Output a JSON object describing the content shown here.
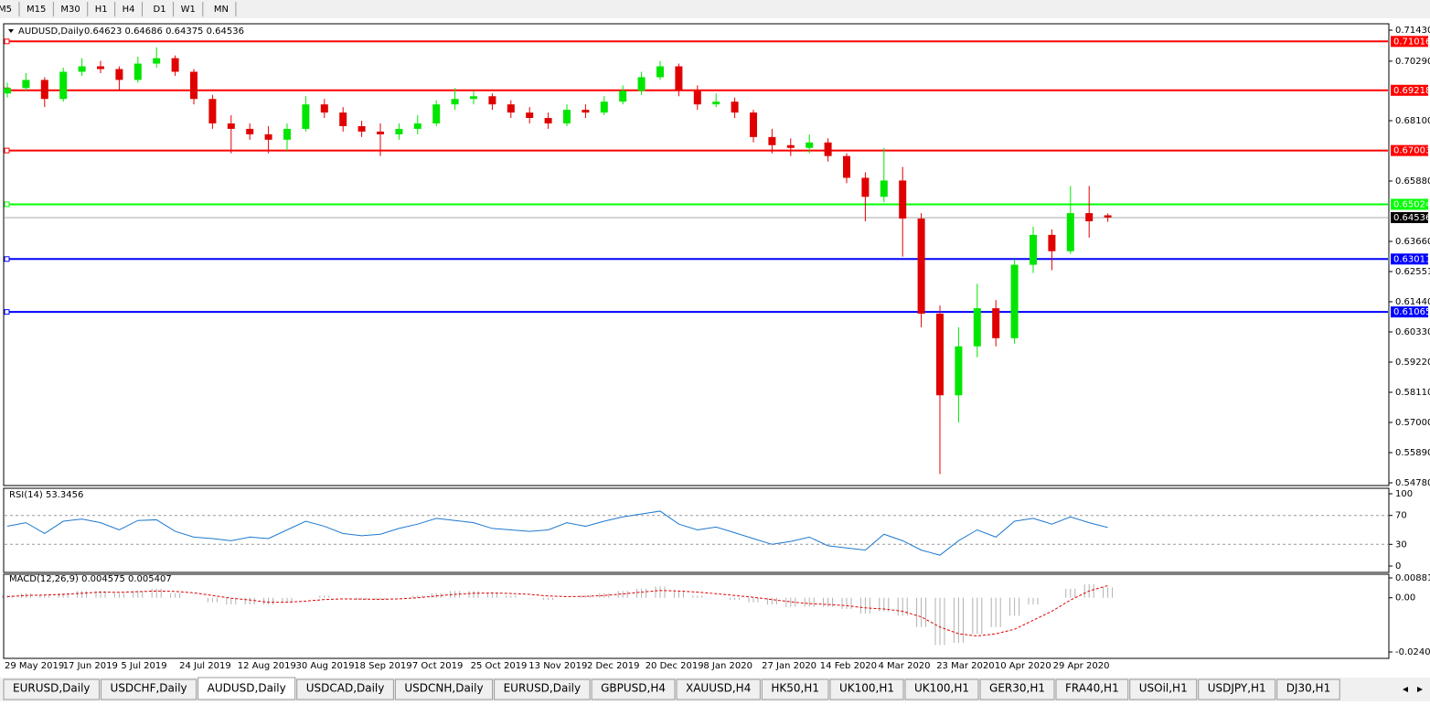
{
  "toolbar": {
    "timeframes": [
      "M5",
      "M15",
      "M30",
      "H1",
      "H4",
      "D1",
      "W1",
      "MN"
    ]
  },
  "chart_data": [
    {
      "type": "candlestick",
      "title": "AUDUSD,Daily",
      "ohlc_text": "0.64623 0.64686 0.64375 0.64536",
      "open": [
        0.691,
        0.693,
        0.696,
        0.689,
        0.699,
        0.701,
        0.7,
        0.696,
        0.702,
        0.704,
        0.699,
        0.689,
        0.68,
        0.678,
        0.676,
        0.674,
        0.678,
        0.687,
        0.684,
        0.679,
        0.677,
        0.676,
        0.678,
        0.68,
        0.687,
        0.689,
        0.69,
        0.687,
        0.684,
        0.682,
        0.68,
        0.685,
        0.684,
        0.688,
        0.692,
        0.697,
        0.701,
        0.692,
        0.687,
        0.688,
        0.684,
        0.675,
        0.672,
        0.671,
        0.673,
        0.668,
        0.66,
        0.653,
        0.659,
        0.645,
        0.61,
        0.58,
        0.598,
        0.612,
        0.601,
        0.628,
        0.639,
        0.633,
        0.647,
        0.6462
      ],
      "high": [
        0.695,
        0.6985,
        0.697,
        0.7005,
        0.704,
        0.703,
        0.701,
        0.7045,
        0.708,
        0.705,
        0.7,
        0.6905,
        0.683,
        0.68,
        0.679,
        0.68,
        0.69,
        0.689,
        0.686,
        0.681,
        0.68,
        0.68,
        0.683,
        0.6885,
        0.693,
        0.692,
        0.691,
        0.6885,
        0.686,
        0.684,
        0.687,
        0.687,
        0.69,
        0.694,
        0.699,
        0.703,
        0.702,
        0.694,
        0.691,
        0.6895,
        0.685,
        0.678,
        0.6745,
        0.676,
        0.6745,
        0.669,
        0.662,
        0.671,
        0.664,
        0.647,
        0.613,
        0.605,
        0.621,
        0.615,
        0.63,
        0.642,
        0.641,
        0.657,
        0.657,
        0.6469
      ],
      "low": [
        0.6895,
        0.692,
        0.686,
        0.688,
        0.6975,
        0.6985,
        0.692,
        0.695,
        0.7005,
        0.6975,
        0.687,
        0.678,
        0.669,
        0.674,
        0.669,
        0.67,
        0.677,
        0.682,
        0.677,
        0.675,
        0.668,
        0.674,
        0.676,
        0.679,
        0.685,
        0.687,
        0.685,
        0.682,
        0.68,
        0.678,
        0.679,
        0.682,
        0.683,
        0.687,
        0.6905,
        0.696,
        0.69,
        0.685,
        0.686,
        0.682,
        0.673,
        0.669,
        0.668,
        0.669,
        0.666,
        0.658,
        0.644,
        0.651,
        0.631,
        0.605,
        0.551,
        0.57,
        0.594,
        0.598,
        0.599,
        0.625,
        0.626,
        0.632,
        0.638,
        0.6438
      ],
      "close": [
        0.693,
        0.696,
        0.689,
        0.699,
        0.701,
        0.7,
        0.696,
        0.702,
        0.704,
        0.699,
        0.689,
        0.68,
        0.678,
        0.676,
        0.674,
        0.678,
        0.687,
        0.684,
        0.679,
        0.677,
        0.676,
        0.678,
        0.68,
        0.687,
        0.689,
        0.69,
        0.687,
        0.684,
        0.682,
        0.68,
        0.685,
        0.684,
        0.688,
        0.692,
        0.697,
        0.701,
        0.692,
        0.687,
        0.688,
        0.684,
        0.675,
        0.672,
        0.671,
        0.673,
        0.668,
        0.66,
        0.653,
        0.659,
        0.645,
        0.61,
        0.58,
        0.598,
        0.612,
        0.601,
        0.628,
        0.639,
        0.633,
        0.647,
        0.644,
        0.6454
      ],
      "up_color": "#00e600",
      "down_color": "#e00000",
      "ylim": [
        0.5478,
        0.7143
      ],
      "yticks": [
        {
          "value": 0.7143,
          "label": "0.71430"
        },
        {
          "value": 0.7029,
          "label": "0.70290"
        },
        {
          "value": 0.681,
          "label": "0.68100"
        },
        {
          "value": 0.6588,
          "label": "0.65880"
        },
        {
          "value": 0.6366,
          "label": "0.63660"
        },
        0.62551,
        {
          "value": 0.6144,
          "label": "0.61440"
        },
        {
          "value": 0.6033,
          "label": "0.60330"
        },
        {
          "value": 0.5922,
          "label": "0.59220"
        },
        {
          "value": 0.5811,
          "label": "0.58110"
        },
        {
          "value": 0.57,
          "label": "0.57000"
        },
        {
          "value": 0.5589,
          "label": "0.55890"
        },
        {
          "value": 0.5478,
          "label": "0.54780"
        }
      ],
      "levels": [
        {
          "value": 0.71016,
          "color": "#ff0000"
        },
        {
          "value": 0.69218,
          "color": "#ff0000"
        },
        {
          "value": 0.67003,
          "color": "#ff0000"
        },
        {
          "value": 0.65024,
          "color": "#00ff00"
        },
        {
          "value": 0.63011,
          "color": "#0000ff"
        },
        {
          "value": 0.61065,
          "color": "#0000ff"
        }
      ],
      "last_price": 0.64536,
      "x_labels": [
        "29 May 2019",
        "17 Jun 2019",
        "5 Jul 2019",
        "24 Jul 2019",
        "12 Aug 2019",
        "30 Aug 2019",
        "18 Sep 2019",
        "7 Oct 2019",
        "25 Oct 2019",
        "13 Nov 2019",
        "2 Dec 2019",
        "20 Dec 2019",
        "8 Jan 2020",
        "27 Jan 2020",
        "14 Feb 2020",
        "4 Mar 2020",
        "23 Mar 2020",
        "10 Apr 2020",
        "29 Apr 2020"
      ]
    },
    {
      "type": "line",
      "title": "RSI(14) 53.3456",
      "color": "#1e78d0",
      "values": [
        55,
        60,
        45,
        62,
        65,
        60,
        50,
        63,
        64,
        48,
        40,
        38,
        35,
        40,
        38,
        50,
        62,
        55,
        45,
        42,
        44,
        52,
        58,
        66,
        63,
        60,
        52,
        50,
        48,
        50,
        60,
        55,
        62,
        68,
        72,
        76,
        58,
        50,
        54,
        46,
        38,
        30,
        34,
        40,
        28,
        25,
        22,
        44,
        35,
        22,
        15,
        35,
        50,
        40,
        62,
        66,
        58,
        68,
        60,
        53.3456
      ],
      "ylim": [
        0,
        100
      ],
      "yticks": [
        100,
        70,
        30,
        0
      ]
    },
    {
      "type": "macd",
      "title": "MACD(12,26,9) 0.004575 0.005407",
      "color": "#b0b0b0",
      "signal_color": "#e00000",
      "values": [
        0.001,
        0.002,
        0.001,
        0.002,
        0.003,
        0.003,
        0.002,
        0.003,
        0.004,
        0.002,
        0.0,
        -0.002,
        -0.003,
        -0.003,
        -0.003,
        -0.002,
        0.0,
        0.001,
        0.0,
        -0.001,
        -0.001,
        0.0,
        0.001,
        0.002,
        0.003,
        0.003,
        0.002,
        0.001,
        0.0,
        -0.001,
        0.0,
        0.001,
        0.002,
        0.003,
        0.004,
        0.005,
        0.003,
        0.001,
        0.0,
        -0.001,
        -0.002,
        -0.003,
        -0.004,
        -0.004,
        -0.004,
        -0.005,
        -0.007,
        -0.006,
        -0.008,
        -0.013,
        -0.021,
        -0.02,
        -0.016,
        -0.013,
        -0.008,
        -0.003,
        0.0,
        0.004,
        0.006,
        0.004575
      ],
      "signal": [
        0.0005,
        0.001,
        0.0012,
        0.0015,
        0.002,
        0.0025,
        0.0024,
        0.0027,
        0.003,
        0.0028,
        0.0022,
        0.001,
        -0.0002,
        -0.001,
        -0.002,
        -0.002,
        -0.0015,
        -0.0008,
        -0.0005,
        -0.0006,
        -0.0007,
        -0.0005,
        0,
        0.0008,
        0.0015,
        0.002,
        0.0021,
        0.0019,
        0.0015,
        0.0008,
        0.0005,
        0.0006,
        0.001,
        0.0017,
        0.0025,
        0.0032,
        0.003,
        0.0025,
        0.0018,
        0.001,
        0.0002,
        -0.0008,
        -0.0018,
        -0.0026,
        -0.003,
        -0.0035,
        -0.0045,
        -0.005,
        -0.006,
        -0.0085,
        -0.013,
        -0.016,
        -0.017,
        -0.016,
        -0.014,
        -0.01,
        -0.006,
        -0.001,
        0.003,
        0.005407
      ],
      "ylim": [
        -0.024082,
        0.008815
      ],
      "yticks": [
        0.008815,
        {
          "value": 0,
          "label": "0.00"
        },
        -0.024082
      ]
    }
  ],
  "tabs": [
    "EURUSD,Daily",
    "USDCHF,Daily",
    "AUDUSD,Daily",
    "USDCAD,Daily",
    "USDCNH,Daily",
    "EURUSD,Daily",
    "GBPUSD,H4",
    "XAUUSD,H4",
    "HK50,H1",
    "UK100,H1",
    "UK100,H1",
    "GER30,H1",
    "FRA40,H1",
    "USOil,H1",
    "USDJPY,H1",
    "DJ30,H1"
  ],
  "active_tab": 2
}
